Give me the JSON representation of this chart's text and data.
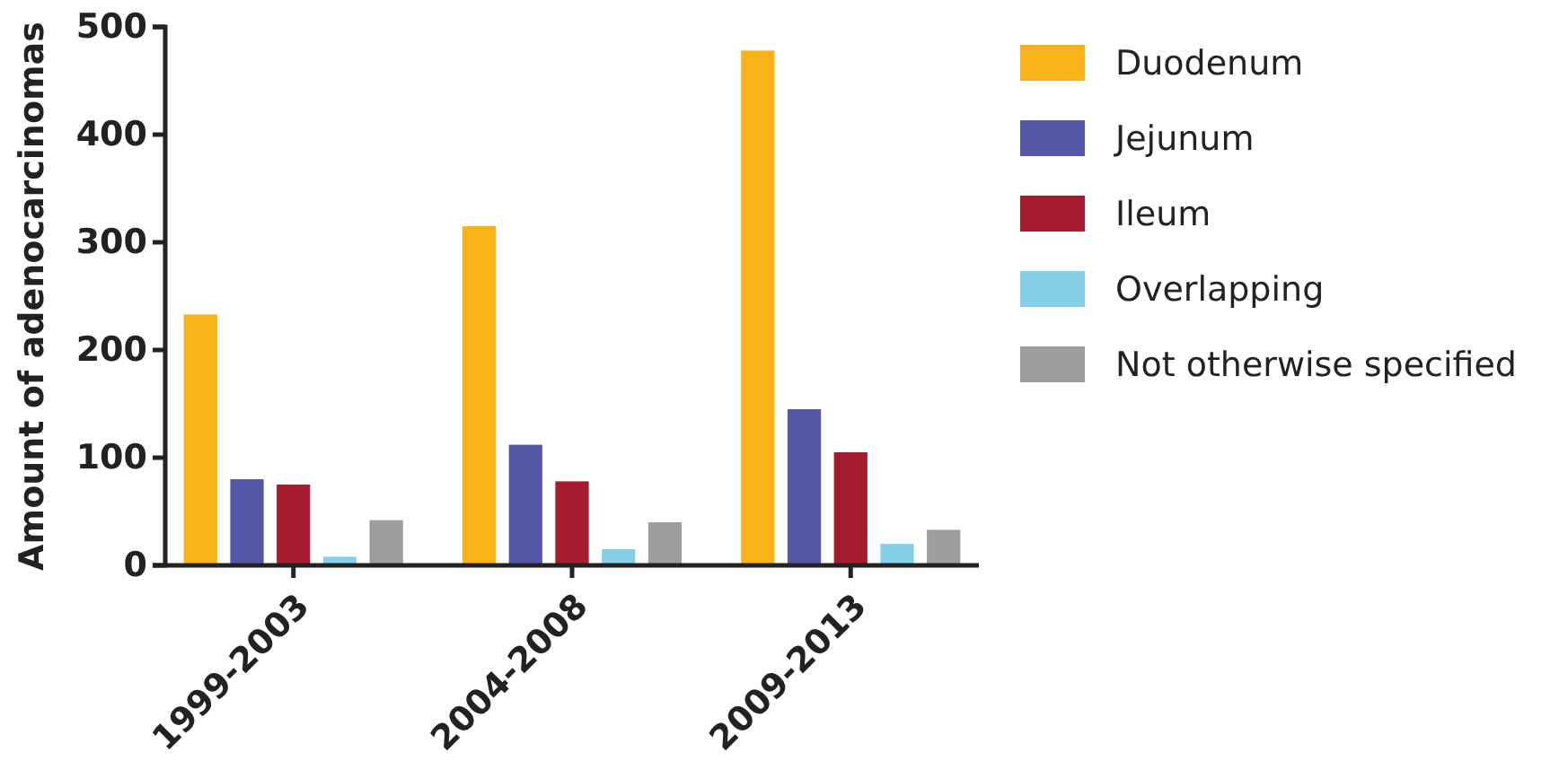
{
  "chart_data": {
    "type": "bar",
    "ylabel": "Amount of adenocarcinomas",
    "categories": [
      "1999-2003",
      "2004-2008",
      "2009-2013"
    ],
    "series": [
      {
        "name": "Duodenum",
        "color": "#f9b218",
        "values": [
          233,
          315,
          478
        ]
      },
      {
        "name": "Jejunum",
        "color": "#5558a6",
        "values": [
          80,
          112,
          145
        ]
      },
      {
        "name": "Ileum",
        "color": "#a51c30",
        "values": [
          75,
          78,
          105
        ]
      },
      {
        "name": "Overlapping",
        "color": "#85d0e7",
        "values": [
          8,
          15,
          20
        ]
      },
      {
        "name": "Not otherwise specified",
        "color": "#9d9d9d",
        "values": [
          42,
          40,
          33
        ]
      }
    ],
    "ylim": [
      0,
      500
    ],
    "yticks": [
      0,
      100,
      200,
      300,
      400,
      500
    ],
    "grid": false,
    "legend": "right"
  }
}
